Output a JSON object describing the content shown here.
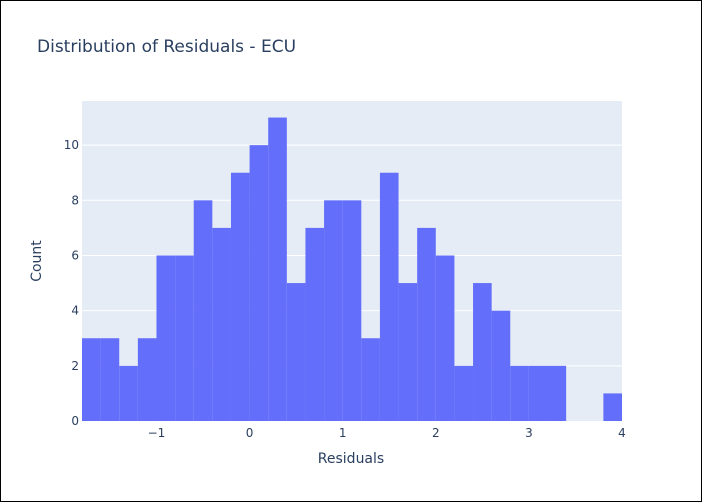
{
  "chart_data": {
    "type": "bar",
    "title": "Distribution of Residuals - ECU",
    "xlabel": "Residuals",
    "ylabel": "Count",
    "xlim": [
      -1.8,
      4.0
    ],
    "ylim": [
      0,
      11.6
    ],
    "bin_width": 0.2,
    "bin_start": -1.8,
    "counts": [
      3,
      3,
      2,
      3,
      6,
      6,
      8,
      7,
      9,
      10,
      11,
      5,
      7,
      8,
      8,
      3,
      9,
      5,
      7,
      6,
      2,
      5,
      4,
      2,
      2,
      2,
      0,
      0,
      1
    ],
    "x_ticks": [
      -1,
      0,
      1,
      2,
      3,
      4
    ],
    "x_tick_labels": [
      "−1",
      "0",
      "1",
      "2",
      "3",
      "4"
    ],
    "y_ticks": [
      0,
      2,
      4,
      6,
      8,
      10
    ],
    "y_tick_labels": [
      "0",
      "2",
      "4",
      "6",
      "8",
      "10"
    ],
    "grid": true,
    "colors": {
      "bar": "#636efa",
      "plot_bg": "#e5ecf6",
      "grid": "#ffffff",
      "text": "#2a3f5f"
    }
  }
}
